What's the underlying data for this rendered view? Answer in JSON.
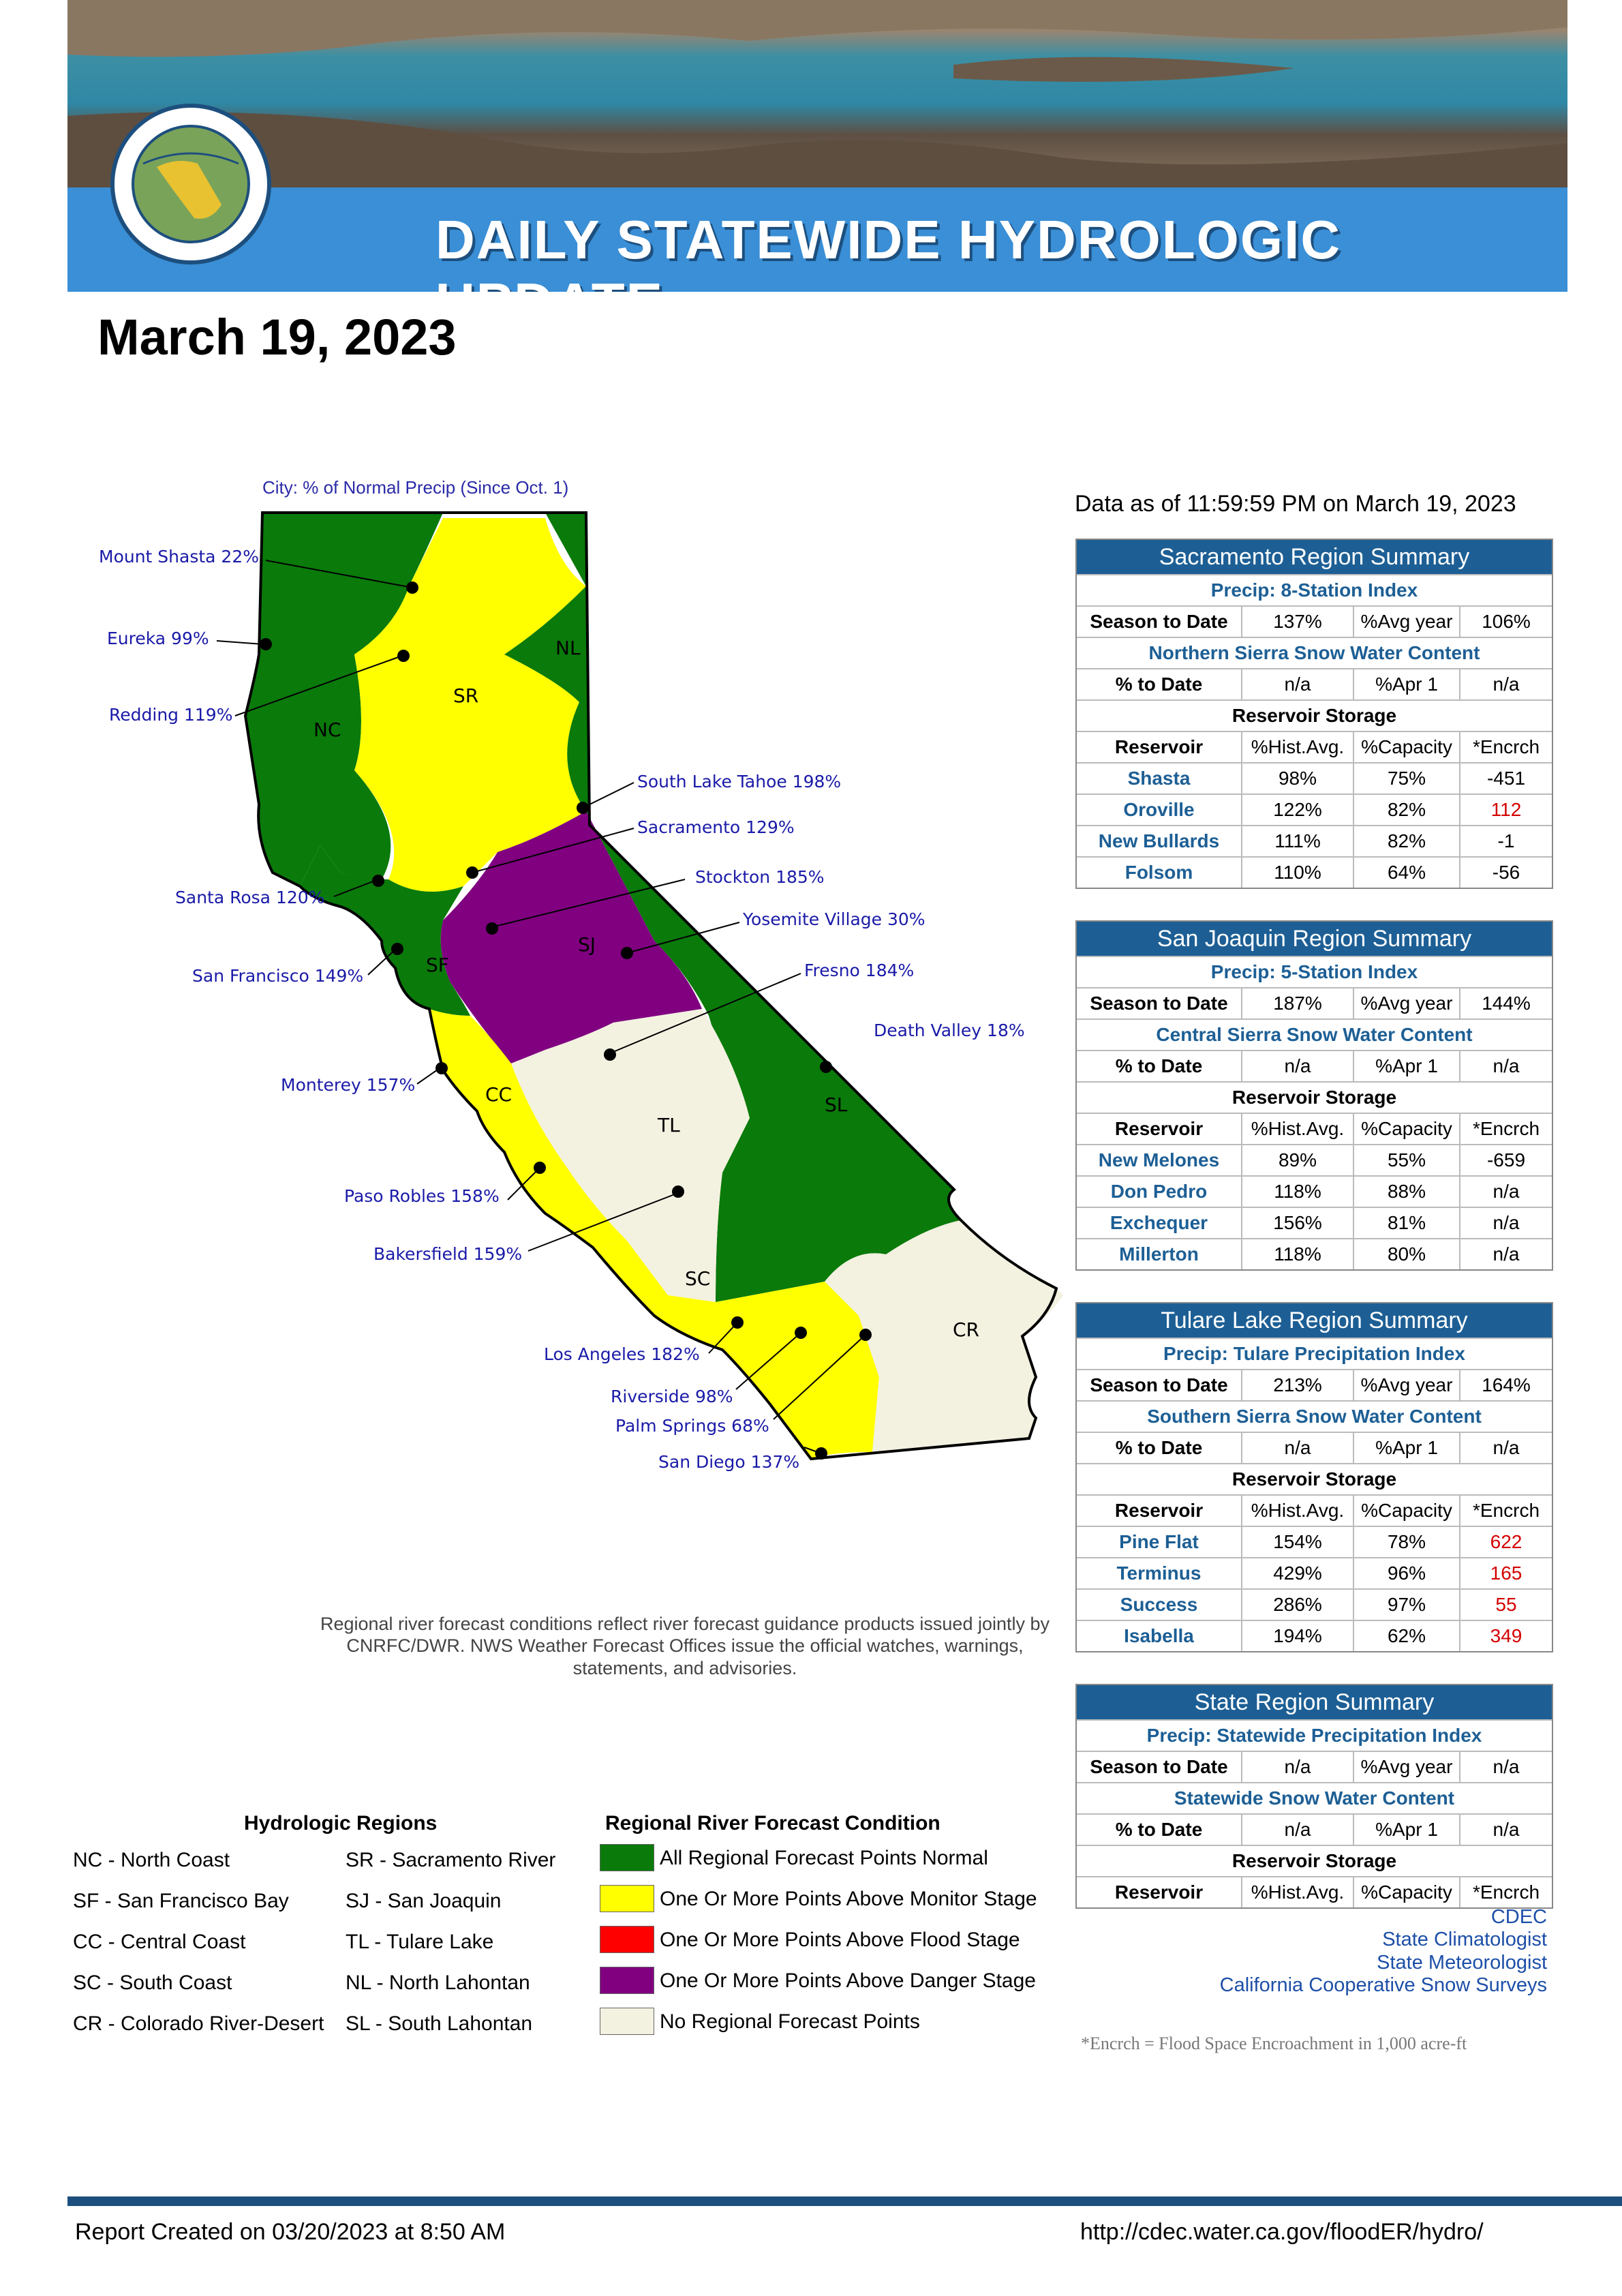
{
  "header": {
    "banner_title": "DAILY STATEWIDE HYDROLOGIC UPDATE",
    "report_date": "March 19, 2023"
  },
  "map": {
    "caption": "City: % of Normal Precip (Since Oct. 1)",
    "cities": [
      {
        "label": "Mount Shasta 22%"
      },
      {
        "label": "Eureka 99%"
      },
      {
        "label": "Redding 119%"
      },
      {
        "label": "South Lake Tahoe 198%"
      },
      {
        "label": "Sacramento 129%"
      },
      {
        "label": "Stockton 185%"
      },
      {
        "label": "Santa Rosa 120%"
      },
      {
        "label": "Yosemite Village 30%"
      },
      {
        "label": "San Francisco 149%"
      },
      {
        "label": "Fresno 184%"
      },
      {
        "label": "Death Valley 18%"
      },
      {
        "label": "Monterey 157%"
      },
      {
        "label": "Paso Robles 158%"
      },
      {
        "label": "Bakersfield 159%"
      },
      {
        "label": "Los Angeles 182%"
      },
      {
        "label": "Riverside 98%"
      },
      {
        "label": "Palm Springs 68%"
      },
      {
        "label": "San Diego 137%"
      }
    ],
    "region_labels": [
      "NL",
      "SR",
      "NC",
      "SJ",
      "SF",
      "CC",
      "TL",
      "SL",
      "SC",
      "CR"
    ],
    "region_colors": {
      "normal": "#0a7a0a",
      "monitor": "#ffff00",
      "danger": "#800080",
      "none": "#f3f1e0"
    }
  },
  "disclaimer": "Regional river forecast conditions reflect river forecast guidance products issued jointly by CNRFC/DWR. NWS Weather Forecast Offices issue the official watches, warnings, statements, and advisories.",
  "legend": {
    "regions_title": "Hydrologic Regions",
    "regions": [
      "NC - North Coast",
      "SR - Sacramento River",
      "SF - San Francisco Bay",
      "SJ - San Joaquin",
      "CC - Central Coast",
      "TL - Tulare Lake",
      "SC - South Coast",
      "NL - North Lahontan",
      "CR - Colorado River-Desert",
      "SL - South Lahontan"
    ],
    "conditions_title": "Regional River Forecast Condition",
    "conditions": [
      {
        "label": "All Regional Forecast Points Normal",
        "color": "#0a7a0a"
      },
      {
        "label": "One Or More Points Above Monitor Stage",
        "color": "#ffff00"
      },
      {
        "label": "One Or More Points Above Flood Stage",
        "color": "#ff0000"
      },
      {
        "label": "One Or More Points Above Danger Stage",
        "color": "#800080"
      },
      {
        "label": "No Regional Forecast Points",
        "color": "#f3f1e0"
      }
    ]
  },
  "data_as_of": "Data as of 11:59:59 PM on March 19, 2023",
  "summaries": {
    "sacramento": {
      "title": "Sacramento Region Summary",
      "precip_title": "Precip: 8-Station Index",
      "season_label": "Season to Date",
      "season_value": "137%",
      "avg_label": "%Avg year",
      "avg_value": "106%",
      "snow_title": "Northern Sierra Snow Water Content",
      "pct_label": "% to Date",
      "pct_value": "n/a",
      "apr_label": "%Apr 1",
      "apr_value": "n/a",
      "storage_title": "Reservoir Storage",
      "col_headers": [
        "Reservoir",
        "%Hist.Avg.",
        "%Capacity",
        "*Encrch"
      ],
      "reservoirs": [
        {
          "name": "Shasta",
          "hist": "98%",
          "cap": "75%",
          "enc": "-451"
        },
        {
          "name": "Oroville",
          "hist": "122%",
          "cap": "82%",
          "enc": "112"
        },
        {
          "name": "New Bullards",
          "hist": "111%",
          "cap": "82%",
          "enc": "-1"
        },
        {
          "name": "Folsom",
          "hist": "110%",
          "cap": "64%",
          "enc": "-56"
        }
      ]
    },
    "sanjoaquin": {
      "title": "San Joaquin Region Summary",
      "precip_title": "Precip: 5-Station Index",
      "season_label": "Season to Date",
      "season_value": "187%",
      "avg_label": "%Avg year",
      "avg_value": "144%",
      "snow_title": "Central Sierra Snow Water Content",
      "pct_label": "% to Date",
      "pct_value": "n/a",
      "apr_label": "%Apr 1",
      "apr_value": "n/a",
      "storage_title": "Reservoir Storage",
      "col_headers": [
        "Reservoir",
        "%Hist.Avg.",
        "%Capacity",
        "*Encrch"
      ],
      "reservoirs": [
        {
          "name": "New Melones",
          "hist": "89%",
          "cap": "55%",
          "enc": "-659"
        },
        {
          "name": "Don Pedro",
          "hist": "118%",
          "cap": "88%",
          "enc": "n/a"
        },
        {
          "name": "Exchequer",
          "hist": "156%",
          "cap": "81%",
          "enc": "n/a"
        },
        {
          "name": "Millerton",
          "hist": "118%",
          "cap": "80%",
          "enc": "n/a"
        }
      ]
    },
    "tulare": {
      "title": "Tulare Lake Region Summary",
      "precip_title": "Precip: Tulare Precipitation Index",
      "season_label": "Season to Date",
      "season_value": "213%",
      "avg_label": "%Avg year",
      "avg_value": "164%",
      "snow_title": "Southern Sierra Snow Water Content",
      "pct_label": "% to Date",
      "pct_value": "n/a",
      "apr_label": "%Apr 1",
      "apr_value": "n/a",
      "storage_title": "Reservoir Storage",
      "col_headers": [
        "Reservoir",
        "%Hist.Avg.",
        "%Capacity",
        "*Encrch"
      ],
      "reservoirs": [
        {
          "name": "Pine Flat",
          "hist": "154%",
          "cap": "78%",
          "enc": "622"
        },
        {
          "name": "Terminus",
          "hist": "429%",
          "cap": "96%",
          "enc": "165"
        },
        {
          "name": "Success",
          "hist": "286%",
          "cap": "97%",
          "enc": "55"
        },
        {
          "name": "Isabella",
          "hist": "194%",
          "cap": "62%",
          "enc": "349"
        }
      ]
    },
    "state": {
      "title": "State Region Summary",
      "precip_title": "Precip: Statewide Precipitation Index",
      "season_label": "Season to Date",
      "season_value": "n/a",
      "avg_label": "%Avg year",
      "avg_value": "n/a",
      "snow_title": "Statewide Snow Water Content",
      "pct_label": "% to Date",
      "pct_value": "n/a",
      "apr_label": "%Apr 1",
      "apr_value": "n/a",
      "storage_title": "Reservoir Storage",
      "col_headers": [
        "Reservoir",
        "%Hist.Avg.",
        "%Capacity",
        "*Encrch"
      ]
    }
  },
  "credits": [
    "CDEC",
    "State Climatologist",
    "State Meteorologist",
    "California Cooperative Snow Surveys"
  ],
  "encrch_note": "*Encrch = Flood Space Encroachment in 1,000 acre-ft",
  "footer": {
    "created": "Report Created on 03/20/2023 at 8:50 AM",
    "url": "http://cdec.water.ca.gov/floodER/hydro/"
  }
}
